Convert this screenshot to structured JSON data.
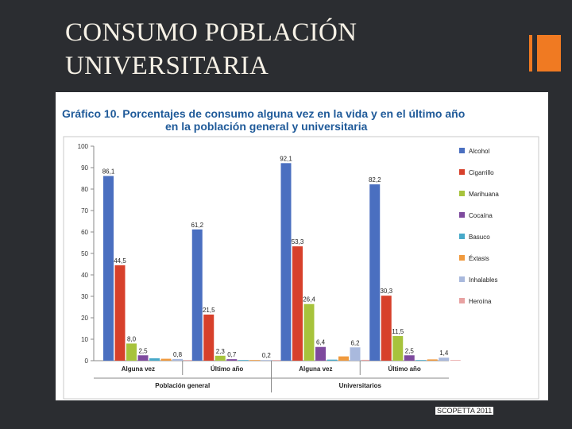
{
  "slide": {
    "title_line1": "CONSUMO POBLACIÓN",
    "title_line2": "UNIVERSITARIA",
    "credit": "SCOPETTA 2011",
    "accent_color": "#f07a22",
    "background_color": "#2b2d31"
  },
  "chart_data": {
    "type": "bar",
    "title_line1": "Gráfico 10. Porcentajes de consumo alguna vez en la vida y en el último año",
    "title_line2": "en la población general y universitaria",
    "categories": [
      "Alguna vez",
      "Último año",
      "Alguna vez",
      "Último año"
    ],
    "groups": [
      {
        "label": "Población general",
        "categories": [
          0,
          1
        ]
      },
      {
        "label": "Universitarios",
        "categories": [
          2,
          3
        ]
      }
    ],
    "series": [
      {
        "name": "Alcohol",
        "color": "#4a6fc0",
        "values": [
          86.1,
          61.2,
          92.1,
          82.2
        ],
        "labels": [
          "86,1",
          "61,2",
          "92,1",
          "82,2"
        ]
      },
      {
        "name": "Cigarrillo",
        "color": "#d7402b",
        "values": [
          44.5,
          21.5,
          53.3,
          30.3
        ],
        "labels": [
          "44,5",
          "21,5",
          "53,3",
          "30,3"
        ]
      },
      {
        "name": "Marihuana",
        "color": "#a7c33c",
        "values": [
          8.0,
          2.3,
          26.4,
          11.5
        ],
        "labels": [
          "8,0",
          "2,3",
          "26,4",
          "11,5"
        ]
      },
      {
        "name": "Cocaína",
        "color": "#7e4a9e",
        "values": [
          2.5,
          0.7,
          6.4,
          2.5
        ],
        "labels": [
          "2,5",
          "0,7",
          "6,4",
          "2,5"
        ]
      },
      {
        "name": "Basuco",
        "color": "#47a9c9",
        "values": [
          1.1,
          0.2,
          0.5,
          0.3
        ],
        "labels": [
          "",
          "",
          "",
          ""
        ]
      },
      {
        "name": "Éxtasis",
        "color": "#f09a3e",
        "values": [
          0.9,
          0.3,
          2.0,
          0.6
        ],
        "labels": [
          "",
          "",
          "",
          ""
        ]
      },
      {
        "name": "Inhalables",
        "color": "#a9b9dd",
        "values": [
          0.8,
          0.2,
          6.2,
          1.4
        ],
        "labels": [
          "0,8",
          "0,2",
          "6,2",
          "1,4"
        ]
      },
      {
        "name": "Heroína",
        "color": "#e8a2a2",
        "values": [
          0.2,
          0.1,
          0.4,
          0.2
        ],
        "labels": [
          "",
          "",
          "",
          ""
        ]
      }
    ],
    "yticks": [
      "0",
      "10",
      "20",
      "30",
      "40",
      "50",
      "60",
      "70",
      "80",
      "90",
      "100"
    ],
    "ylim": [
      0,
      100
    ],
    "grid": false,
    "legend": "right"
  }
}
